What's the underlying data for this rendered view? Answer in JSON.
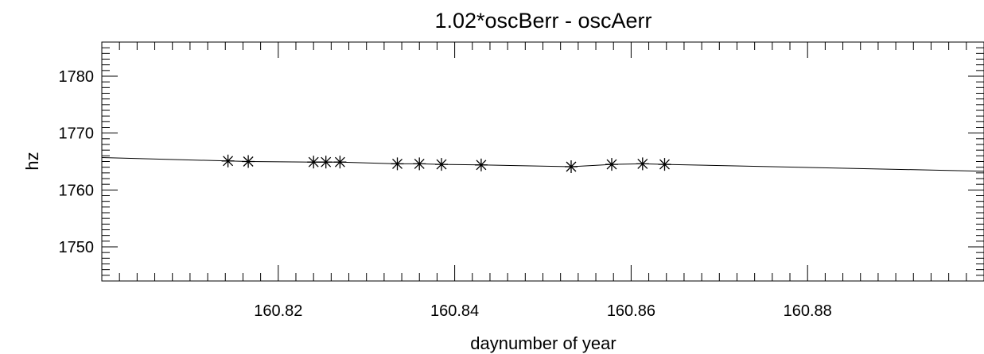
{
  "chart_data": {
    "type": "line",
    "title": "1.02*oscBerr - oscAerr",
    "xlabel": "daynumber of year",
    "ylabel": "hz",
    "xlim": [
      160.8,
      160.9
    ],
    "ylim": [
      1744,
      1786
    ],
    "xticks": [
      160.82,
      160.84,
      160.86,
      160.88
    ],
    "xtick_labels": [
      "160.82",
      "160.84",
      "160.86",
      "160.88"
    ],
    "yticks": [
      1750,
      1760,
      1770,
      1780
    ],
    "ytick_labels": [
      "1750",
      "1760",
      "1770",
      "1780"
    ],
    "grid": false,
    "line": {
      "x": [
        160.8,
        160.8143,
        160.8166,
        160.824,
        160.8254,
        160.827,
        160.8335,
        160.836,
        160.8385,
        160.843,
        160.8532,
        160.8578,
        160.8613,
        160.8638,
        160.9
      ],
      "y": [
        1765.7,
        1765.1,
        1765.0,
        1764.9,
        1764.9,
        1764.9,
        1764.6,
        1764.6,
        1764.5,
        1764.4,
        1764.1,
        1764.5,
        1764.6,
        1764.5,
        1763.3
      ]
    },
    "points": {
      "marker": "asterisk",
      "x": [
        160.8143,
        160.8166,
        160.824,
        160.8254,
        160.827,
        160.8335,
        160.836,
        160.8385,
        160.843,
        160.8532,
        160.8578,
        160.8613,
        160.8638
      ],
      "y": [
        1765.1,
        1765.0,
        1764.9,
        1764.9,
        1764.9,
        1764.6,
        1764.6,
        1764.5,
        1764.4,
        1764.1,
        1764.5,
        1764.6,
        1764.5
      ]
    }
  }
}
